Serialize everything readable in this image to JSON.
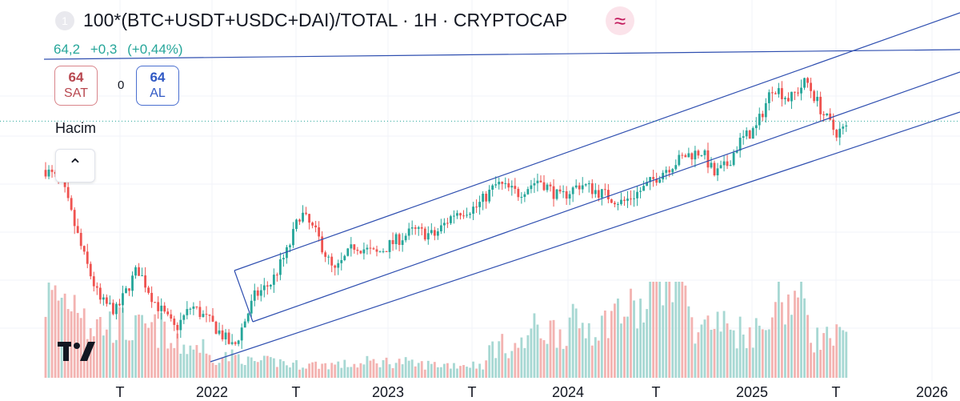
{
  "header": {
    "badge": "1",
    "title": "100*(BTC+USDT+USDC+DAI)/TOTAL · 1H · CRYPTOCAP",
    "approx_icon": "≈",
    "last_value": "64,2",
    "change": "+0,3",
    "change_pct": "(+0,44%)"
  },
  "trade": {
    "sell_price": "64",
    "sell_label": "SAT",
    "spread": "0",
    "buy_price": "64",
    "buy_label": "AL"
  },
  "volume_label": "Hacim",
  "colors": {
    "up": "#26a69a",
    "down": "#ef5350",
    "up_volume": "#a7d8d3",
    "down_volume": "#f3b3b1",
    "trendline": "#2f4fb0",
    "price_line": "#26a69a"
  },
  "chart_data": {
    "type": "candlestick",
    "title": "100*(BTC+USDT+USDC+DAI)/TOTAL · 1H · CRYPTOCAP",
    "x_ticks": [
      "T",
      "2022",
      "T",
      "2023",
      "T",
      "2024",
      "T",
      "2025",
      "T",
      "2026"
    ],
    "ylim": [
      37,
      72
    ],
    "current_value": 64.2,
    "trendlines_yaxis": true,
    "price_path": [
      [
        0.0,
        59.0
      ],
      [
        0.02,
        57.5
      ],
      [
        0.045,
        50.0
      ],
      [
        0.065,
        45.0
      ],
      [
        0.085,
        44.0
      ],
      [
        0.11,
        48.5
      ],
      [
        0.13,
        45.0
      ],
      [
        0.155,
        42.0
      ],
      [
        0.175,
        44.5
      ],
      [
        0.2,
        42.5
      ],
      [
        0.225,
        40.0
      ],
      [
        0.25,
        45.5
      ],
      [
        0.27,
        47.0
      ],
      [
        0.29,
        50.5
      ],
      [
        0.305,
        54.5
      ],
      [
        0.325,
        52.0
      ],
      [
        0.345,
        48.0
      ],
      [
        0.37,
        51.0
      ],
      [
        0.395,
        50.0
      ],
      [
        0.42,
        51.5
      ],
      [
        0.44,
        52.5
      ],
      [
        0.465,
        52.0
      ],
      [
        0.49,
        54.5
      ],
      [
        0.515,
        55.0
      ],
      [
        0.54,
        57.5
      ],
      [
        0.565,
        56.5
      ],
      [
        0.59,
        58.0
      ],
      [
        0.615,
        56.0
      ],
      [
        0.64,
        57.5
      ],
      [
        0.665,
        56.5
      ],
      [
        0.69,
        55.5
      ],
      [
        0.715,
        57.0
      ],
      [
        0.74,
        59.0
      ],
      [
        0.765,
        60.5
      ],
      [
        0.785,
        61.0
      ],
      [
        0.8,
        58.5
      ],
      [
        0.815,
        59.5
      ],
      [
        0.83,
        62.0
      ],
      [
        0.85,
        63.5
      ],
      [
        0.87,
        68.0
      ],
      [
        0.89,
        66.5
      ],
      [
        0.91,
        68.5
      ],
      [
        0.93,
        65.0
      ],
      [
        0.945,
        63.0
      ],
      [
        0.96,
        63.5
      ]
    ],
    "volume_scale": [
      0.3,
      0.2,
      0.18,
      0.12,
      0.08,
      0.06,
      0.05,
      0.05,
      0.06,
      0.05,
      0.05,
      0.12,
      0.18,
      0.2,
      0.25,
      0.45,
      0.2,
      0.18,
      0.3,
      0.15,
      0.1
    ]
  }
}
